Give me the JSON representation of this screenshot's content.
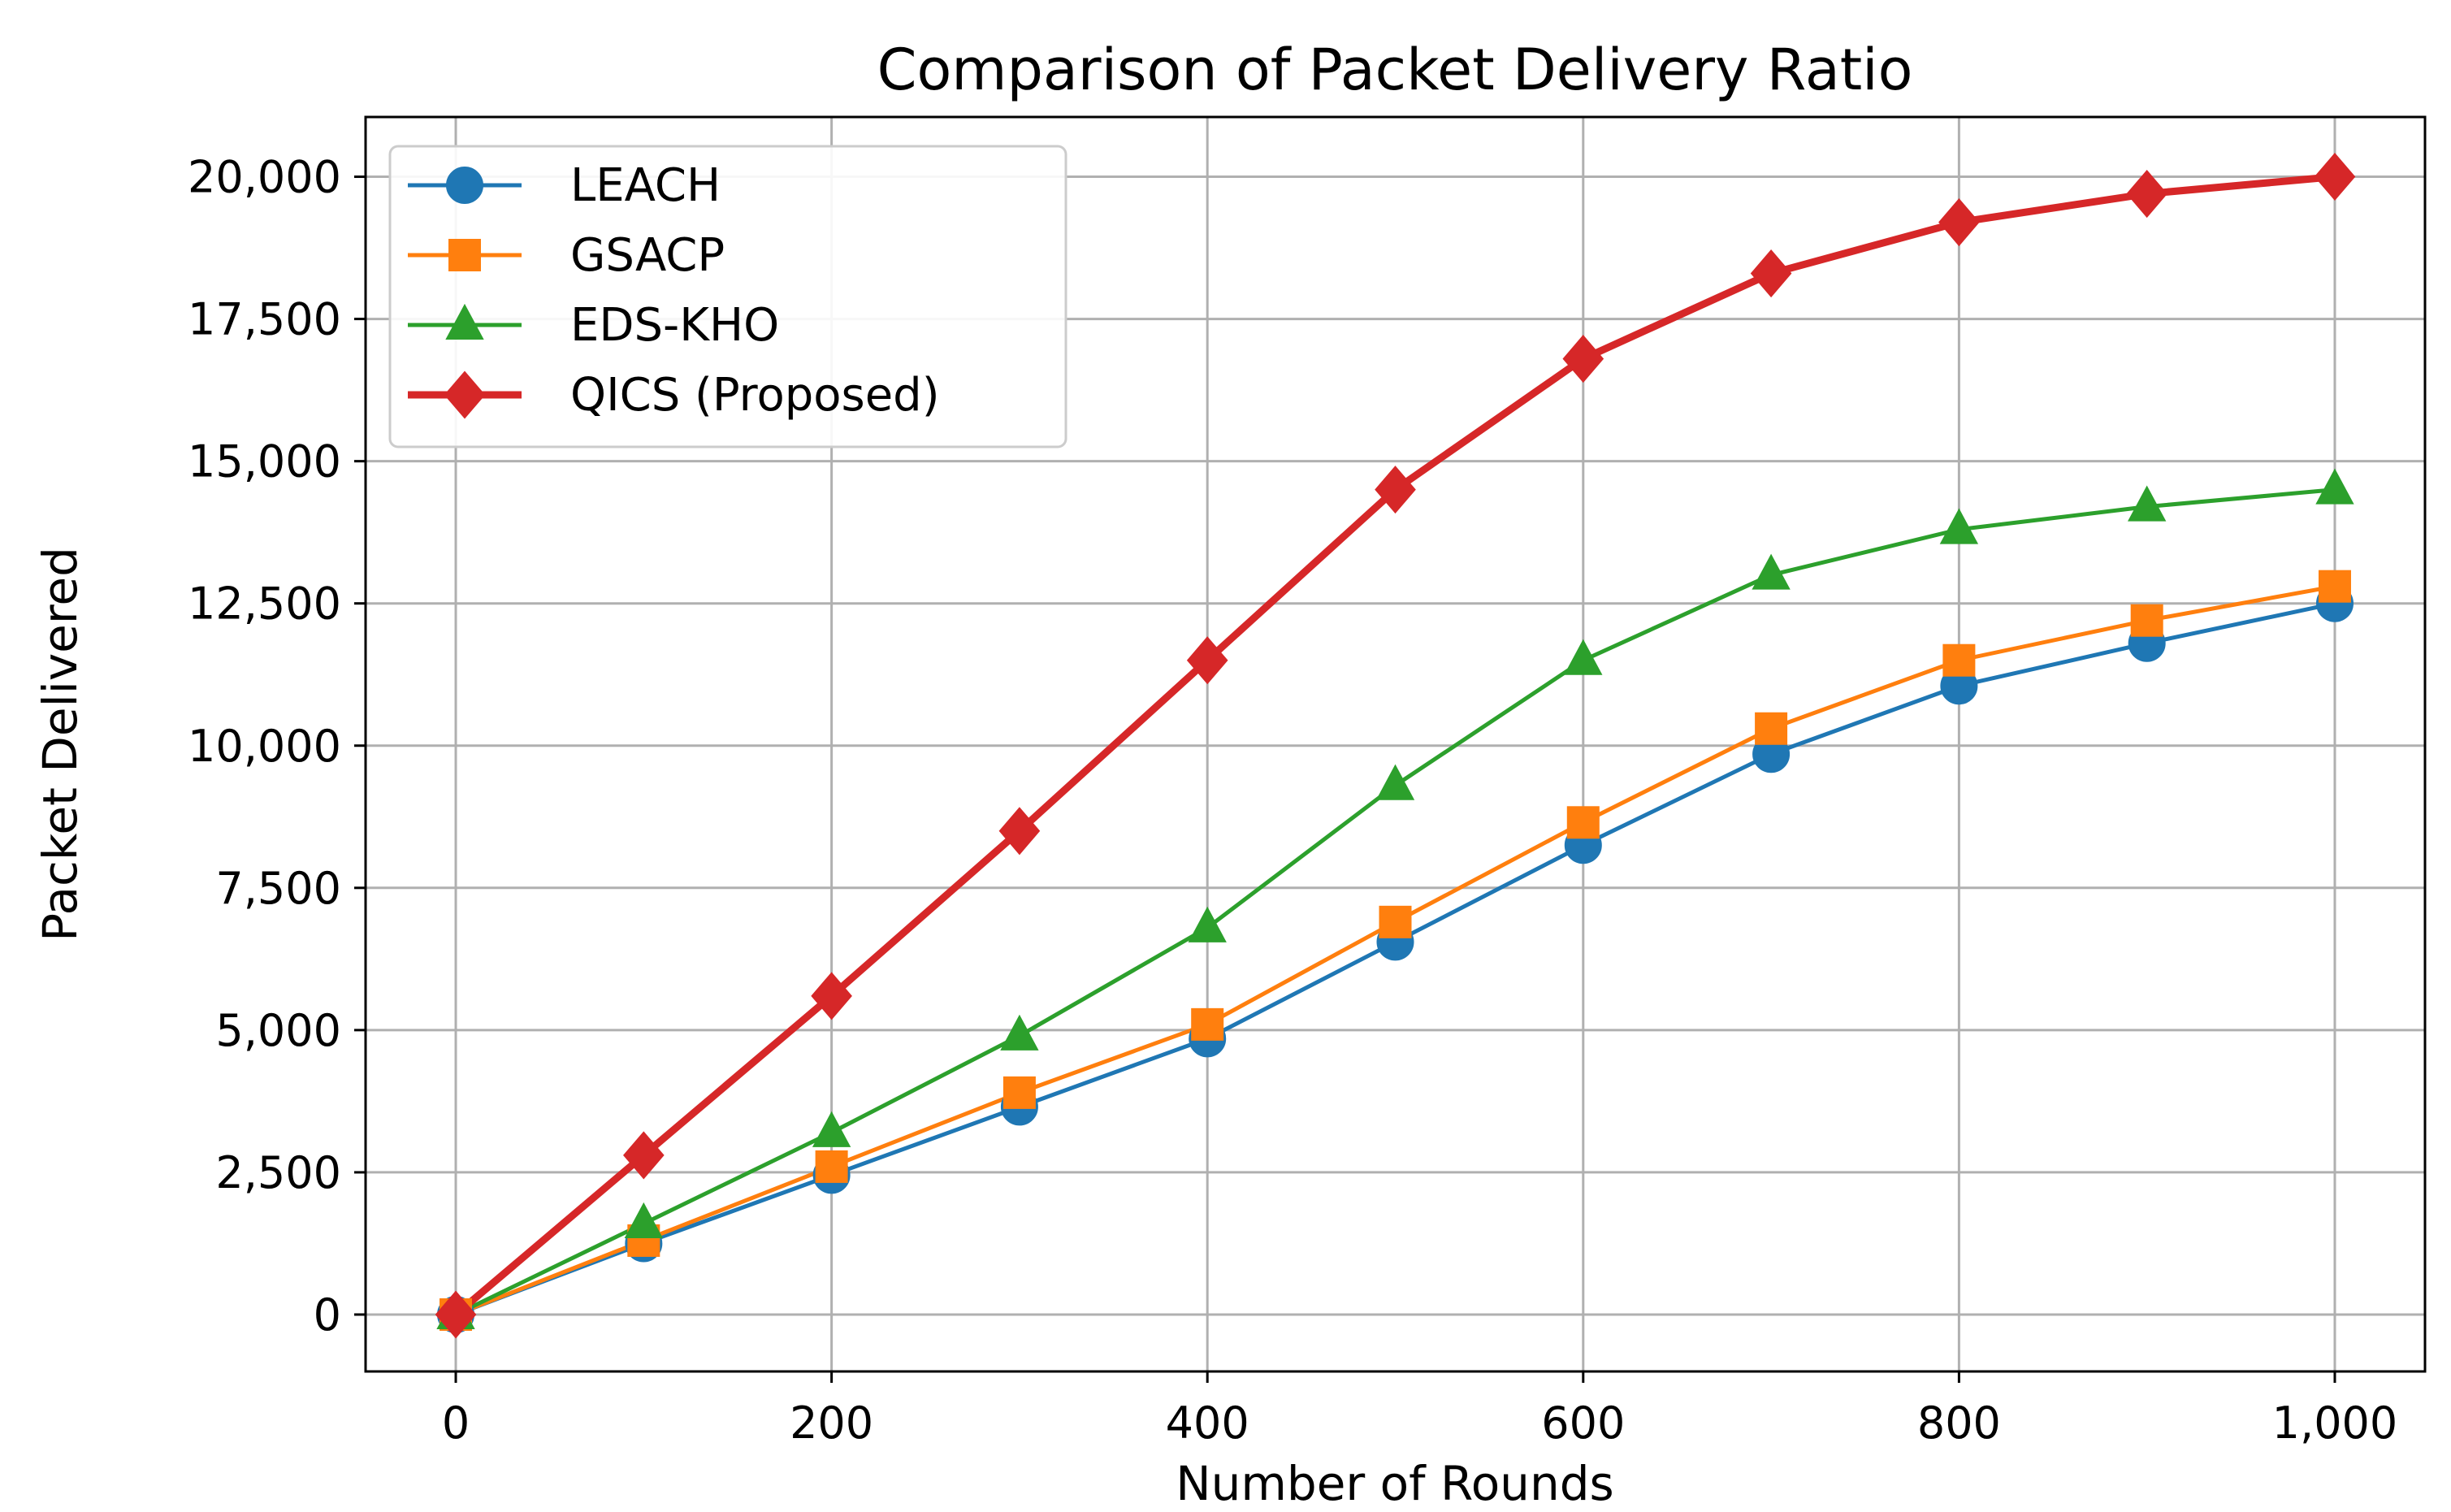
{
  "chart_data": {
    "type": "line",
    "title": "Comparison of Packet Delivery Ratio",
    "xlabel": "Number of Rounds",
    "ylabel": "Packet Delivered",
    "x": [
      0,
      100,
      200,
      300,
      400,
      500,
      600,
      700,
      800,
      900,
      1000
    ],
    "xlim": [
      -48,
      1048
    ],
    "ylim": [
      -1000,
      21050
    ],
    "xticks": [
      0,
      200,
      400,
      600,
      800,
      1000
    ],
    "xtick_labels": [
      "0",
      "200",
      "400",
      "600",
      "800",
      "1,000"
    ],
    "yticks": [
      0,
      2500,
      5000,
      7500,
      10000,
      12500,
      15000,
      17500,
      20000
    ],
    "ytick_labels": [
      "0",
      "2,500",
      "5,000",
      "7,500",
      "10,000",
      "12,500",
      "15,000",
      "17,500",
      "20,000"
    ],
    "grid": true,
    "legend_position": "top-left",
    "series": [
      {
        "name": "LEACH",
        "color": "#1f77b4",
        "marker": "circle",
        "values": [
          0,
          1250,
          2450,
          3650,
          4850,
          6550,
          8250,
          9850,
          11050,
          11800,
          12500
        ]
      },
      {
        "name": "GSACP",
        "color": "#ff7f0e",
        "marker": "square",
        "values": [
          0,
          1300,
          2600,
          3900,
          5100,
          6900,
          8650,
          10300,
          11500,
          12200,
          12800
        ]
      },
      {
        "name": "EDS-KHO",
        "color": "#2ca02c",
        "marker": "triangle",
        "values": [
          0,
          1600,
          3200,
          4900,
          6800,
          9300,
          11500,
          13000,
          13800,
          14200,
          14500
        ]
      },
      {
        "name": "QICS (Proposed)",
        "color": "#d62728",
        "marker": "diamond",
        "values": [
          0,
          2800,
          5600,
          8500,
          11500,
          14500,
          16800,
          18300,
          19200,
          19700,
          20000
        ]
      }
    ]
  }
}
